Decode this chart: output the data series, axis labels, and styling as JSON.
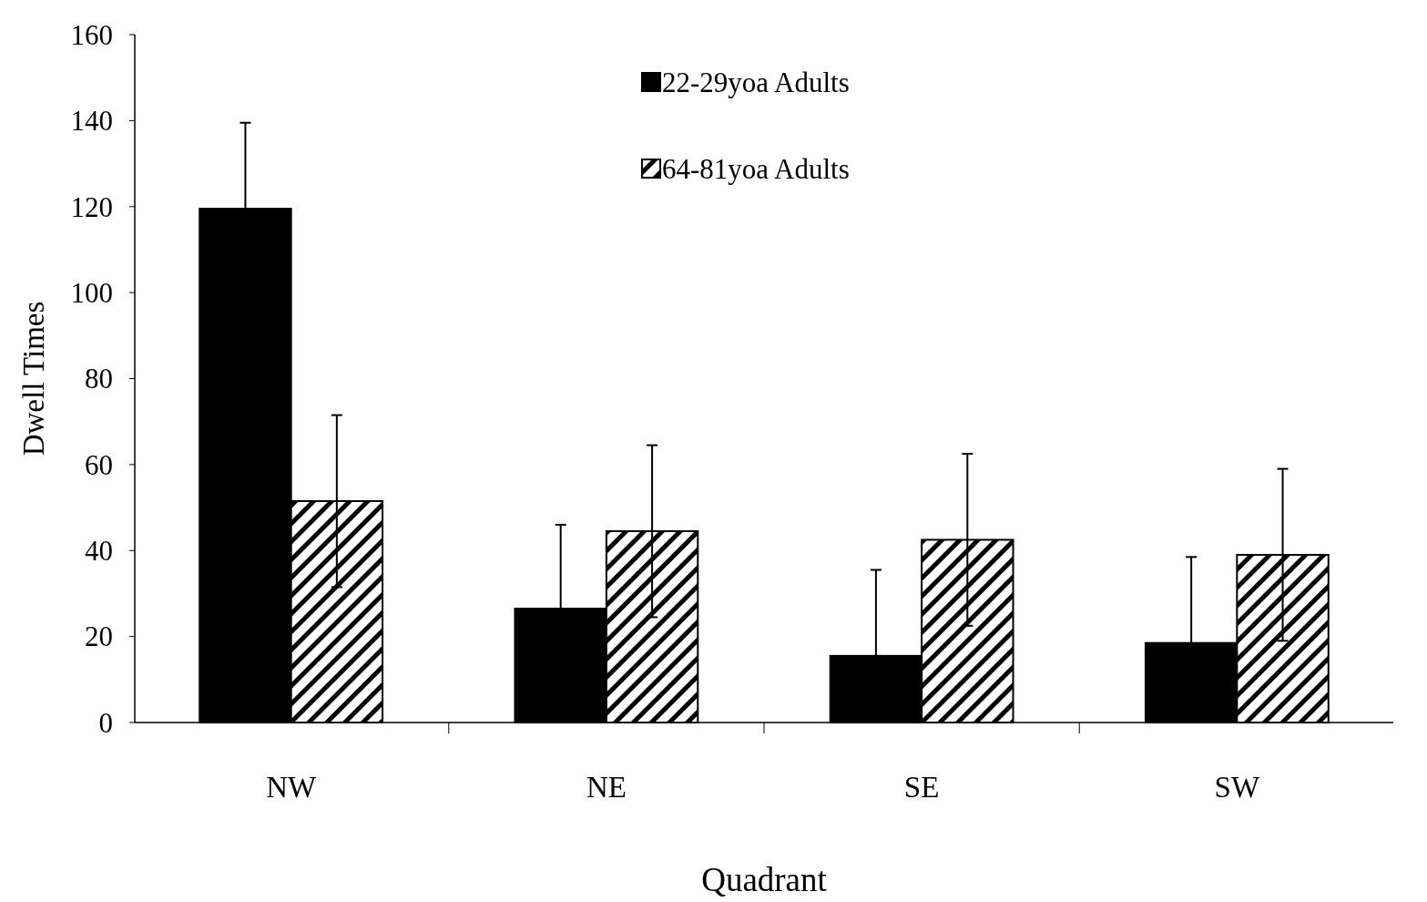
{
  "chart_data": {
    "type": "bar",
    "xlabel": "Quadrant",
    "ylabel": "Dwell Times",
    "categories": [
      "NW",
      "NE",
      "SE",
      "SW"
    ],
    "series": [
      {
        "name": "22-29yoa Adults",
        "color": "#000000",
        "values": [
          119.5,
          26.5,
          15.5,
          18.5
        ],
        "errors": [
          [
            119.5,
            139.5
          ],
          [
            26.5,
            46
          ],
          [
            15.5,
            35.5
          ],
          [
            18.5,
            38.5
          ]
        ]
      },
      {
        "name": "64-81yoa Adults",
        "color": "#000000",
        "values": [
          51.5,
          44.5,
          42.5,
          39
        ],
        "errors": [
          20,
          20,
          20,
          20
        ]
      }
    ],
    "ylim": [
      0,
      160
    ],
    "yticks": [
      0,
      20,
      40,
      60,
      80,
      100,
      120,
      140,
      160
    ],
    "grid": false,
    "legend": "top"
  }
}
